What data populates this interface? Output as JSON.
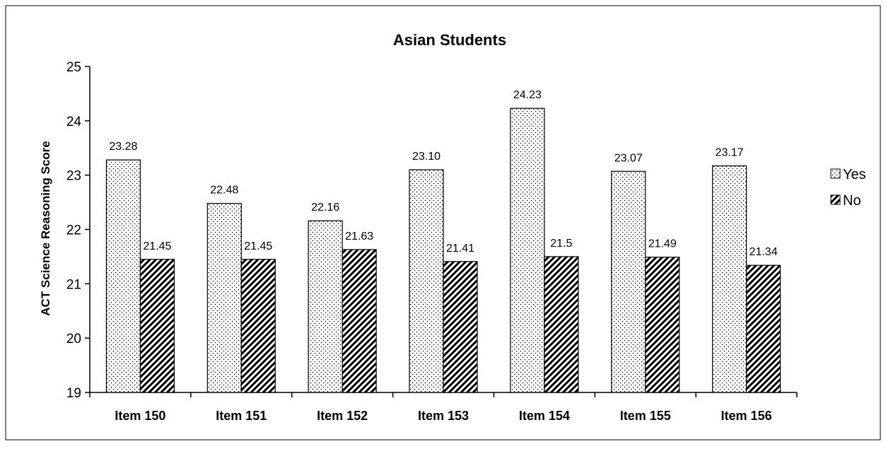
{
  "chart_data": {
    "type": "bar",
    "title": "Asian Students",
    "xlabel": "",
    "ylabel": "ACT Science Reasoning Score",
    "ylim": [
      19,
      25
    ],
    "yticks": [
      19,
      20,
      21,
      22,
      23,
      24,
      25
    ],
    "grid": false,
    "legend_position": "right",
    "categories": [
      "Item 150",
      "Item 151",
      "Item 152",
      "Item 153",
      "Item 154",
      "Item 155",
      "Item 156"
    ],
    "series": [
      {
        "name": "Yes",
        "pattern": "dots",
        "values": [
          23.28,
          22.48,
          22.16,
          23.1,
          24.23,
          23.07,
          23.17
        ],
        "labels": [
          "23.28",
          "22.48",
          "22.16",
          "23.10",
          "24.23",
          "23.07",
          "23.17"
        ]
      },
      {
        "name": "No",
        "pattern": "diagonal-hatch",
        "values": [
          21.45,
          21.45,
          21.63,
          21.41,
          21.5,
          21.49,
          21.34
        ],
        "labels": [
          "21.45",
          "21.45",
          "21.63",
          "21.41",
          "21.5",
          "21.49",
          "21.34"
        ]
      }
    ]
  }
}
